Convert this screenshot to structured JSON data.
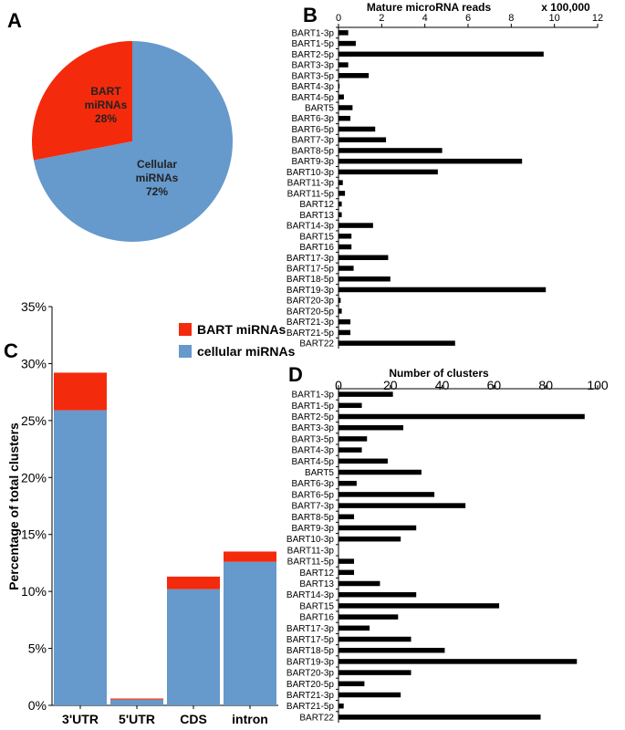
{
  "panels": {
    "a": "A",
    "b": "B",
    "c": "C",
    "d": "D"
  },
  "chart_data": [
    {
      "panel": "A",
      "type": "pie",
      "slices": [
        {
          "label_lines": [
            "BART",
            "miRNAs",
            "28%"
          ],
          "value": 28,
          "color": "#f42a0c"
        },
        {
          "label_lines": [
            "Cellular",
            "miRNAs",
            "72%"
          ],
          "value": 72,
          "color": "#6699cc"
        }
      ]
    },
    {
      "panel": "B",
      "type": "bar",
      "orientation": "horizontal",
      "title": "Mature microRNA reads",
      "unit_label": "x 100,000",
      "xlim": [
        0,
        12
      ],
      "xticks": [
        "0",
        "2",
        "4",
        "6",
        "8",
        "10",
        "12"
      ],
      "color": "#000000",
      "categories": [
        "BART1-3p",
        "BART1-5p",
        "BART2-5p",
        "BART3-3p",
        "BART3-5p",
        "BART4-3p",
        "BART4-5p",
        "BART5",
        "BART6-3p",
        "BART6-5p",
        "BART7-3p",
        "BART8-5p",
        "BART9-3p",
        "BART10-3p",
        "BART11-3p",
        "BART11-5p",
        "BART12",
        "BART13",
        "BART14-3p",
        "BART15",
        "BART16",
        "BART17-3p",
        "BART17-5p",
        "BART18-5p",
        "BART19-3p",
        "BART20-3p",
        "BART20-5p",
        "BART21-3p",
        "BART21-5p",
        "BART22"
      ],
      "values": [
        0.45,
        0.8,
        9.5,
        0.45,
        1.4,
        0.05,
        0.25,
        0.65,
        0.55,
        1.7,
        2.2,
        4.8,
        8.5,
        4.6,
        0.2,
        0.3,
        0.15,
        0.15,
        1.6,
        0.6,
        0.6,
        2.3,
        0.7,
        2.4,
        9.6,
        0.1,
        0.15,
        0.55,
        0.55,
        5.4
      ]
    },
    {
      "panel": "C",
      "type": "bar",
      "stacked": true,
      "ylabel": "Percentage of total clusters",
      "ylim": [
        0,
        35
      ],
      "yticks": [
        "0%",
        "5%",
        "10%",
        "15%",
        "20%",
        "25%",
        "30%",
        "35%"
      ],
      "legend_position": "top-right",
      "categories": [
        "3'UTR",
        "5'UTR",
        "CDS",
        "intron"
      ],
      "series": [
        {
          "name": "cellular miRNAs",
          "color": "#6699cc",
          "values": [
            25.9,
            0.5,
            10.2,
            12.6
          ]
        },
        {
          "name": "BART miRNAs",
          "color": "#f42a0c",
          "values": [
            3.3,
            0.1,
            1.1,
            0.9
          ]
        }
      ],
      "legend_order": [
        "BART miRNAs",
        "cellular miRNAs"
      ]
    },
    {
      "panel": "D",
      "type": "bar",
      "orientation": "horizontal",
      "title": "Number of clusters",
      "xlim": [
        0,
        100
      ],
      "xticks": [
        "0",
        "20",
        "40",
        "60",
        "80",
        "100"
      ],
      "color": "#000000",
      "categories": [
        "BART1-3p",
        "BART1-5p",
        "BART2-5p",
        "BART3-3p",
        "BART3-5p",
        "BART4-3p",
        "BART4-5p",
        "BART5",
        "BART6-3p",
        "BART6-5p",
        "BART7-3p",
        "BART8-5p",
        "BART9-3p",
        "BART10-3p",
        "BART11-3p",
        "BART11-5p",
        "BART12",
        "BART13",
        "BART14-3p",
        "BART15",
        "BART16",
        "BART17-3p",
        "BART17-5p",
        "BART18-5p",
        "BART19-3p",
        "BART20-3p",
        "BART20-5p",
        "BART21-3p",
        "BART21-5p",
        "BART22"
      ],
      "values": [
        21,
        9,
        95,
        25,
        11,
        9,
        19,
        32,
        7,
        37,
        49,
        6,
        30,
        24,
        0,
        6,
        6,
        16,
        30,
        62,
        23,
        12,
        28,
        41,
        92,
        28,
        10,
        24,
        2,
        78
      ]
    }
  ]
}
